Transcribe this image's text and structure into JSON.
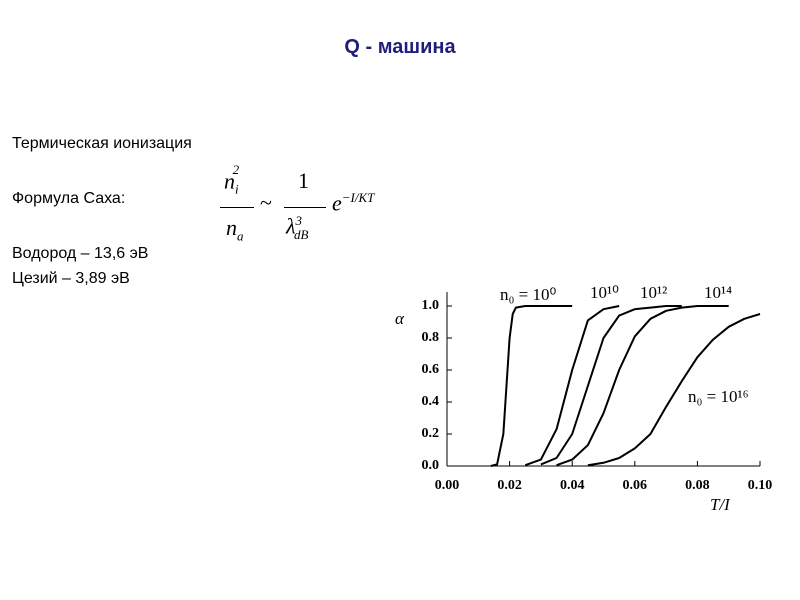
{
  "title": "Q - машина",
  "lines": [
    "Термическая ионизация",
    "Формула Саха:",
    "Водород – 13,6 эВ",
    "Цезий – 3,89 эВ"
  ],
  "formula": {
    "lhs_num": "n",
    "lhs_num_sub": "i",
    "lhs_num_sup": "2",
    "lhs_den": "n",
    "lhs_den_sub": "a",
    "sim": "~",
    "rhs_num": "1",
    "rhs_den": "λ",
    "rhs_den_sup": "3",
    "rhs_den_sub": "dB",
    "exp_base": "e",
    "exp_power": "−I/KT"
  },
  "chart_data": {
    "type": "line",
    "xlabel": "T/I",
    "ylabel": "α",
    "x": [
      0.014,
      0.016,
      0.018,
      0.019,
      0.02,
      0.021,
      0.022,
      0.025,
      0.03,
      0.035,
      0.04,
      0.045,
      0.05,
      0.055,
      0.06,
      0.065,
      0.07,
      0.075,
      0.08,
      0.085,
      0.09,
      0.095,
      0.1
    ],
    "series": [
      {
        "name": "n₀ = 10⁰",
        "color": "#000000",
        "values": [
          0,
          0.01,
          0.2,
          0.5,
          0.8,
          0.95,
          0.99,
          1,
          1,
          1,
          1,
          null,
          null,
          null,
          null,
          null,
          null,
          null,
          null,
          null,
          null,
          null,
          null
        ]
      },
      {
        "name": "10¹⁰",
        "color": "#000000",
        "values": [
          null,
          null,
          null,
          null,
          null,
          null,
          null,
          0.005,
          0.04,
          0.23,
          0.6,
          0.91,
          0.98,
          1,
          null,
          null,
          null,
          null,
          null,
          null,
          null,
          null,
          null
        ]
      },
      {
        "name": "10¹²",
        "color": "#000000",
        "values": [
          null,
          null,
          null,
          null,
          null,
          null,
          null,
          null,
          0.01,
          0.05,
          0.2,
          0.5,
          0.8,
          0.94,
          0.98,
          0.99,
          1,
          1,
          null,
          null,
          null,
          null,
          null
        ]
      },
      {
        "name": "10¹⁴",
        "color": "#000000",
        "values": [
          null,
          null,
          null,
          null,
          null,
          null,
          null,
          null,
          null,
          0.005,
          0.04,
          0.13,
          0.33,
          0.6,
          0.81,
          0.92,
          0.97,
          0.99,
          1,
          1,
          1,
          null,
          null
        ]
      },
      {
        "name": "n₀ = 10¹⁶",
        "color": "#000000",
        "values": [
          null,
          null,
          null,
          null,
          null,
          null,
          null,
          null,
          null,
          null,
          null,
          0.005,
          0.02,
          0.05,
          0.11,
          0.2,
          0.37,
          0.53,
          0.68,
          0.79,
          0.87,
          0.92,
          0.95
        ]
      }
    ],
    "xlim": [
      0,
      0.1
    ],
    "xticks": [
      {
        "value": 0,
        "label": "0.00"
      },
      {
        "value": 0.02,
        "label": "0.02"
      },
      {
        "value": 0.04,
        "label": "0.04"
      },
      {
        "value": 0.06,
        "label": "0.06"
      },
      {
        "value": 0.08,
        "label": "0.08"
      },
      {
        "value": 0.1,
        "label": "0.10"
      }
    ],
    "ylim": [
      0,
      1
    ],
    "yticks": [
      {
        "value": 0,
        "label": "0.0"
      },
      {
        "value": 0.2,
        "label": "0.2"
      },
      {
        "value": 0.4,
        "label": "0.4"
      },
      {
        "value": 0.6,
        "label": "0.6"
      },
      {
        "value": 0.8,
        "label": "0.8"
      },
      {
        "value": 1,
        "label": "1.0"
      }
    ],
    "grid": false
  }
}
